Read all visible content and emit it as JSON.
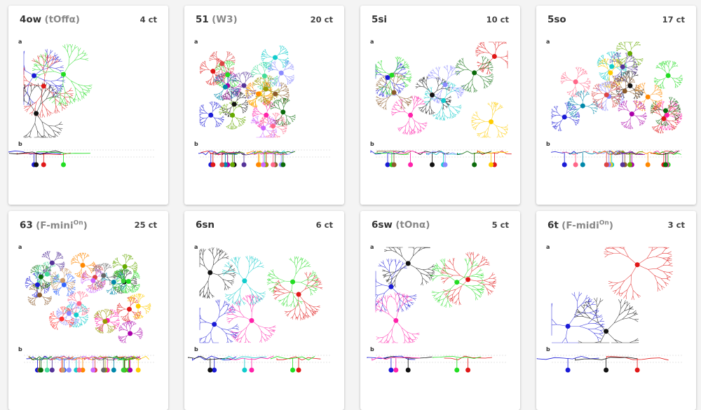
{
  "cards": [
    {
      "name": "4ow",
      "alias": "(tOffα)",
      "count": 4,
      "count_unit": "ct",
      "panels": [
        "a",
        "b"
      ]
    },
    {
      "name": "51",
      "alias": "(W3)",
      "count": 20,
      "count_unit": "ct",
      "panels": [
        "a",
        "b"
      ]
    },
    {
      "name": "5si",
      "count": 10,
      "count_unit": "ct",
      "panels": [
        "a",
        "b"
      ]
    },
    {
      "name": "5so",
      "count": 17,
      "count_unit": "ct",
      "panels": [
        "a",
        "b"
      ]
    },
    {
      "name": "63",
      "alias": "(F-mini",
      "alias_sup": "On",
      "alias_end": ")",
      "count": 25,
      "count_unit": "ct",
      "panels": [
        "a",
        "b"
      ]
    },
    {
      "name": "6sn",
      "count": 6,
      "count_unit": "ct",
      "panels": [
        "a",
        "b"
      ]
    },
    {
      "name": "6sw",
      "alias": "(tOnα)",
      "count": 5,
      "count_unit": "ct",
      "panels": [
        "a",
        "b"
      ]
    },
    {
      "name": "6t",
      "alias": "(F-midi",
      "alias_sup": "On",
      "alias_end": ")",
      "count": 3,
      "count_unit": "ct",
      "panels": [
        "a",
        "b"
      ]
    }
  ]
}
